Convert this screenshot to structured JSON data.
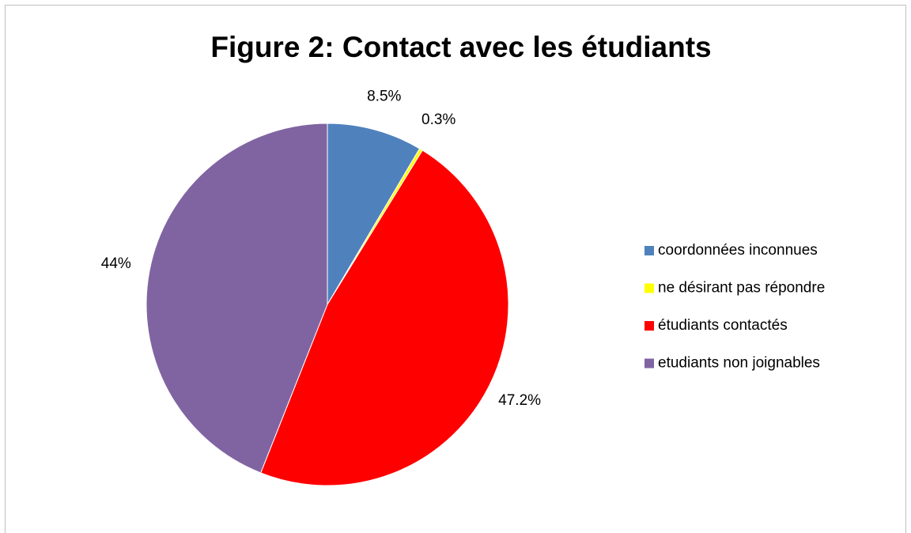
{
  "chart_data": {
    "type": "pie",
    "title": "Figure 2: Contact avec les étudiants",
    "categories": [
      "coordonnées inconnues",
      "ne désirant pas répondre",
      "étudiants contactés",
      "etudiants non joignables"
    ],
    "values": [
      8.5,
      0.3,
      47.2,
      44
    ],
    "value_labels": [
      "8.5%",
      "0.3%",
      "47.2%",
      "44%"
    ],
    "colors": [
      "#4f81bd",
      "#ffff00",
      "#ff0000",
      "#8064a2"
    ],
    "legend": "right"
  }
}
